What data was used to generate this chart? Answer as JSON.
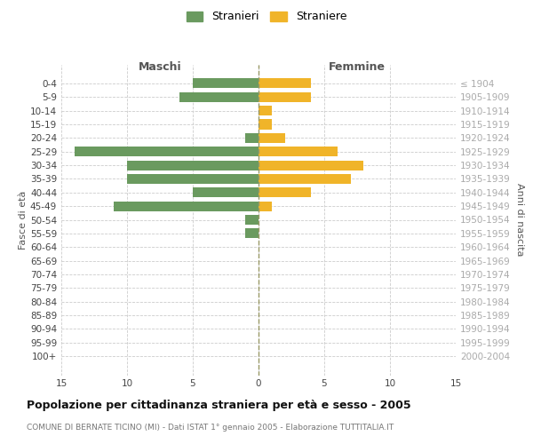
{
  "age_groups": [
    "0-4",
    "5-9",
    "10-14",
    "15-19",
    "20-24",
    "25-29",
    "30-34",
    "35-39",
    "40-44",
    "45-49",
    "50-54",
    "55-59",
    "60-64",
    "65-69",
    "70-74",
    "75-79",
    "80-84",
    "85-89",
    "90-94",
    "95-99",
    "100+"
  ],
  "birth_years": [
    "2000-2004",
    "1995-1999",
    "1990-1994",
    "1985-1989",
    "1980-1984",
    "1975-1979",
    "1970-1974",
    "1965-1969",
    "1960-1964",
    "1955-1959",
    "1950-1954",
    "1945-1949",
    "1940-1944",
    "1935-1939",
    "1930-1934",
    "1925-1929",
    "1920-1924",
    "1915-1919",
    "1910-1914",
    "1905-1909",
    "≤ 1904"
  ],
  "males": [
    5,
    6,
    0,
    0,
    1,
    14,
    10,
    10,
    5,
    11,
    1,
    1,
    0,
    0,
    0,
    0,
    0,
    0,
    0,
    0,
    0
  ],
  "females": [
    4,
    4,
    1,
    1,
    2,
    6,
    8,
    7,
    4,
    1,
    0,
    0,
    0,
    0,
    0,
    0,
    0,
    0,
    0,
    0,
    0
  ],
  "male_color": "#6a9a5f",
  "female_color": "#f0b429",
  "xlim": 15,
  "title": "Popolazione per cittadinanza straniera per età e sesso - 2005",
  "subtitle": "COMUNE DI BERNATE TICINO (MI) - Dati ISTAT 1° gennaio 2005 - Elaborazione TUTTITALIA.IT",
  "xlabel_left": "Maschi",
  "xlabel_right": "Femmine",
  "ylabel_left": "Fasce di età",
  "ylabel_right": "Anni di nascita",
  "legend_male": "Stranieri",
  "legend_female": "Straniere",
  "bg_color": "#ffffff",
  "grid_color": "#cccccc",
  "center_line_color": "#999966",
  "tick_fontsize": 7.5,
  "title_fontsize": 9,
  "subtitle_fontsize": 6.5
}
